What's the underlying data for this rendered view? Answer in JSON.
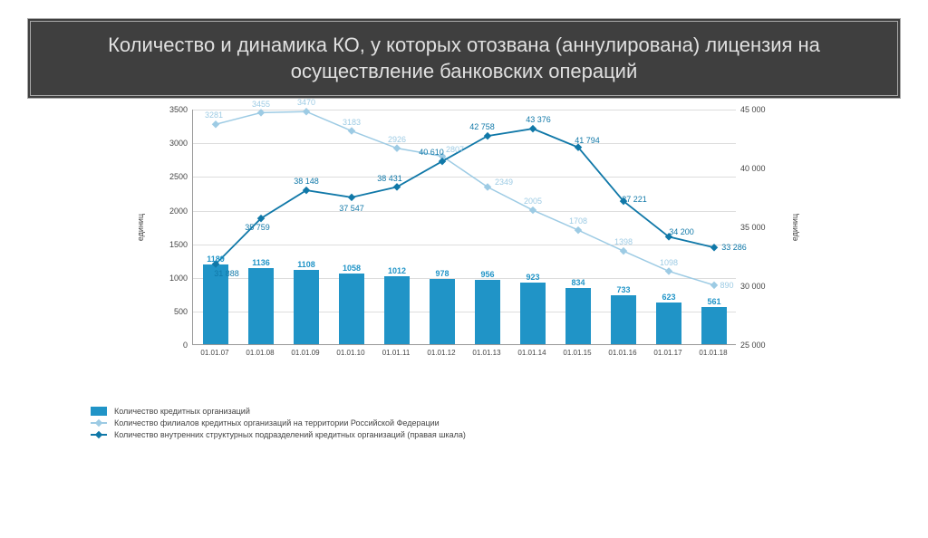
{
  "title": "Количество и динамика КО, у которых отозвана (аннулирована) лицензия на осуществление банковских операций",
  "chart": {
    "type": "combo-bar-line-dual-axis",
    "background_color": "#ffffff",
    "grid_color": "#dddddd",
    "categories": [
      "01.01.07",
      "01.01.08",
      "01.01.09",
      "01.01.10",
      "01.01.11",
      "01.01.12",
      "01.01.13",
      "01.01.14",
      "01.01.15",
      "01.01.16",
      "01.01.17",
      "01.01.18"
    ],
    "left_axis": {
      "label": "единиц",
      "min": 0,
      "max": 3500,
      "step": 500,
      "font_size": 9
    },
    "right_axis": {
      "label": "единиц",
      "min": 25000,
      "max": 45000,
      "step": 5000,
      "font_size": 9
    },
    "bars": {
      "color": "#2094c7",
      "width": 0.55,
      "values": [
        1189,
        1136,
        1108,
        1058,
        1012,
        978,
        956,
        923,
        834,
        733,
        623,
        561
      ],
      "label_color": "#2094c7",
      "label_fontsize": 9
    },
    "line_branches": {
      "name": "Количество филиалов кредитных организаций на территории Российской Федерации",
      "axis": "left",
      "color": "#9dcbe4",
      "marker": "diamond",
      "line_width": 1.5,
      "values": [
        3281,
        3455,
        3470,
        3183,
        2926,
        2807,
        2349,
        2005,
        1708,
        1398,
        1098,
        890
      ],
      "label_fontsize": 9
    },
    "line_subdiv": {
      "name": "Количество внутренних структурных подразделений кредитных организаций (правая шкала)",
      "axis": "right",
      "color": "#1078a8",
      "marker": "diamond",
      "line_width": 1.8,
      "values": [
        31888,
        35759,
        38148,
        37547,
        38431,
        40610,
        42758,
        43376,
        41794,
        37221,
        34200,
        33286
      ],
      "label_fontsize": 9
    },
    "legend": {
      "bars": "Количество кредитных организаций",
      "branches": "Количество филиалов кредитных организаций на территории Российской Федерации",
      "subdiv": "Количество внутренних структурных подразделений кредитных организаций (правая шкала)"
    },
    "title_box": {
      "bg": "#3f3f3f",
      "text_color": "#e0e0e0",
      "font_size": 22
    }
  }
}
